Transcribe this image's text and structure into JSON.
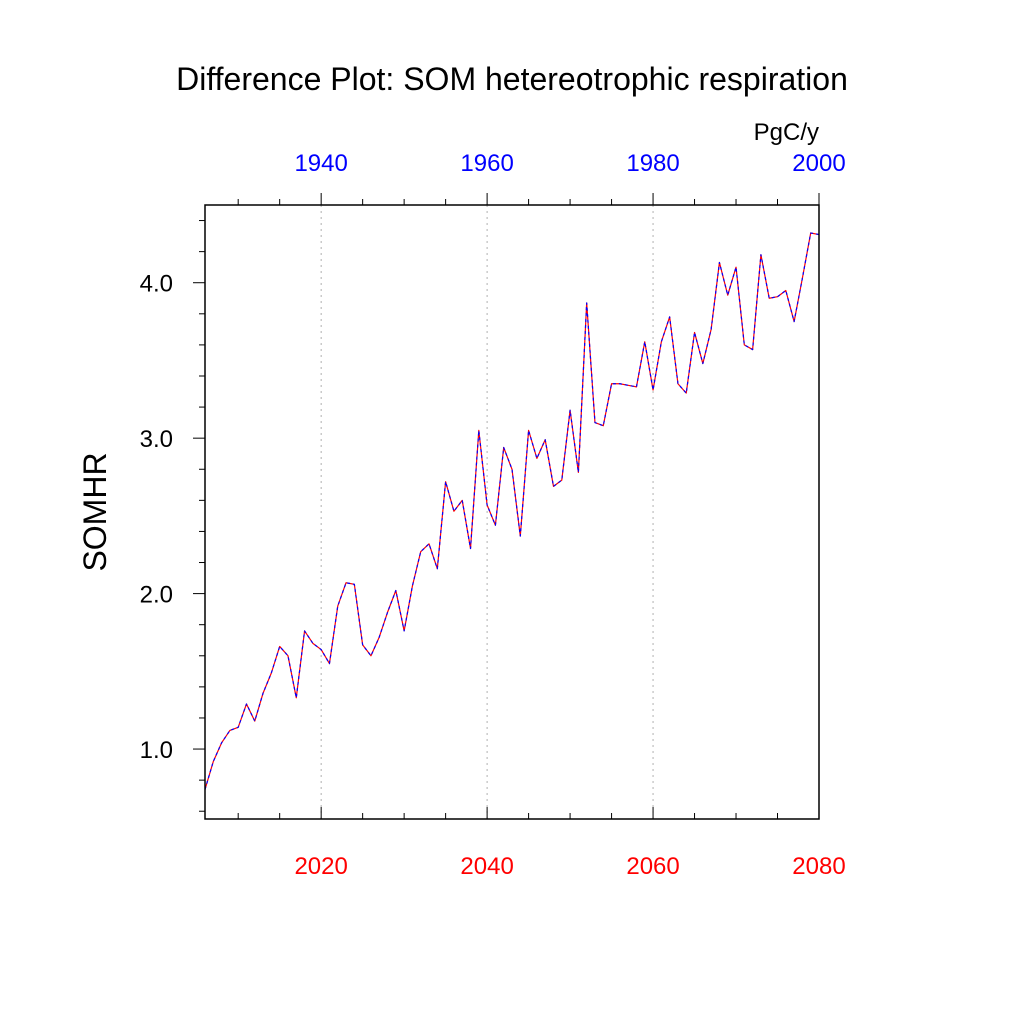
{
  "chart_data": {
    "type": "line",
    "title": "Difference Plot: SOM hetereotrophic respiration",
    "ylabel": "SOMHR",
    "units": "PgC/y",
    "xlim": [
      2006,
      2080
    ],
    "ylim": [
      0.55,
      4.5
    ],
    "bottom_axis": {
      "color": "#ff0000",
      "ticks": [
        2020,
        2040,
        2060,
        2080
      ],
      "tick_labels": [
        "2020",
        "2040",
        "2060",
        "2080"
      ]
    },
    "top_axis": {
      "color": "#0000ff",
      "offset_years": 80,
      "ticks": [
        1940,
        1960,
        1980,
        2000
      ],
      "tick_labels": [
        "1940",
        "1960",
        "1980",
        "2000"
      ]
    },
    "left_axis": {
      "ticks": [
        1.0,
        2.0,
        3.0,
        4.0
      ],
      "tick_labels": [
        "1.0",
        "2.0",
        "3.0",
        "4.0"
      ]
    },
    "grid": "vertical dotted at major bottom ticks",
    "series": [
      {
        "color": "#ff0000",
        "style": "solid",
        "x": [
          2006,
          2007,
          2008,
          2009,
          2010,
          2011,
          2012,
          2013,
          2014,
          2015,
          2016,
          2017,
          2018,
          2019,
          2020,
          2021,
          2022,
          2023,
          2024,
          2025,
          2026,
          2027,
          2028,
          2029,
          2030,
          2031,
          2032,
          2033,
          2034,
          2035,
          2036,
          2037,
          2038,
          2039,
          2040,
          2041,
          2042,
          2043,
          2044,
          2045,
          2046,
          2047,
          2048,
          2049,
          2050,
          2051,
          2052,
          2053,
          2054,
          2055,
          2056,
          2057,
          2058,
          2059,
          2060,
          2061,
          2062,
          2063,
          2064,
          2065,
          2066,
          2067,
          2068,
          2069,
          2070,
          2071,
          2072,
          2073,
          2074,
          2075,
          2076,
          2077,
          2078,
          2079,
          2080
        ],
        "values": [
          0.74,
          0.92,
          1.04,
          1.12,
          1.14,
          1.29,
          1.18,
          1.36,
          1.49,
          1.66,
          1.6,
          1.33,
          1.76,
          1.68,
          1.64,
          1.55,
          1.92,
          2.07,
          2.06,
          1.67,
          1.6,
          1.72,
          1.88,
          2.02,
          1.76,
          2.05,
          2.27,
          2.32,
          2.16,
          2.72,
          2.53,
          2.6,
          2.29,
          3.05,
          2.57,
          2.44,
          2.94,
          2.8,
          2.37,
          3.05,
          2.87,
          2.99,
          2.69,
          2.73,
          3.18,
          2.78,
          3.87,
          3.1,
          3.08,
          3.35,
          3.35,
          3.34,
          3.33,
          3.62,
          3.31,
          3.62,
          3.78,
          3.35,
          3.29,
          3.68,
          3.48,
          3.7,
          4.13,
          3.92,
          4.1,
          3.6,
          3.57,
          4.18,
          3.9,
          3.91,
          3.95,
          3.75,
          4.03,
          4.32,
          4.31
        ]
      },
      {
        "color": "#0000ff",
        "style": "dashed",
        "x": [
          2006,
          2007,
          2008,
          2009,
          2010,
          2011,
          2012,
          2013,
          2014,
          2015,
          2016,
          2017,
          2018,
          2019,
          2020,
          2021,
          2022,
          2023,
          2024,
          2025,
          2026,
          2027,
          2028,
          2029,
          2030,
          2031,
          2032,
          2033,
          2034,
          2035,
          2036,
          2037,
          2038,
          2039,
          2040,
          2041,
          2042,
          2043,
          2044,
          2045,
          2046,
          2047,
          2048,
          2049,
          2050,
          2051,
          2052,
          2053,
          2054,
          2055,
          2056,
          2057,
          2058,
          2059,
          2060,
          2061,
          2062,
          2063,
          2064,
          2065,
          2066,
          2067,
          2068,
          2069,
          2070,
          2071,
          2072,
          2073,
          2074,
          2075,
          2076,
          2077,
          2078,
          2079,
          2080
        ],
        "values": [
          0.74,
          0.92,
          1.04,
          1.12,
          1.14,
          1.29,
          1.18,
          1.36,
          1.49,
          1.66,
          1.6,
          1.33,
          1.76,
          1.68,
          1.64,
          1.55,
          1.92,
          2.07,
          2.06,
          1.67,
          1.6,
          1.72,
          1.88,
          2.02,
          1.76,
          2.05,
          2.27,
          2.32,
          2.16,
          2.72,
          2.53,
          2.6,
          2.29,
          3.05,
          2.57,
          2.44,
          2.94,
          2.8,
          2.37,
          3.05,
          2.87,
          2.99,
          2.69,
          2.73,
          3.18,
          2.78,
          3.87,
          3.1,
          3.08,
          3.35,
          3.35,
          3.34,
          3.33,
          3.62,
          3.31,
          3.62,
          3.78,
          3.35,
          3.29,
          3.68,
          3.48,
          3.7,
          4.13,
          3.92,
          4.1,
          3.6,
          3.57,
          4.18,
          3.9,
          3.91,
          3.95,
          3.75,
          4.03,
          4.32,
          4.31
        ]
      }
    ]
  }
}
